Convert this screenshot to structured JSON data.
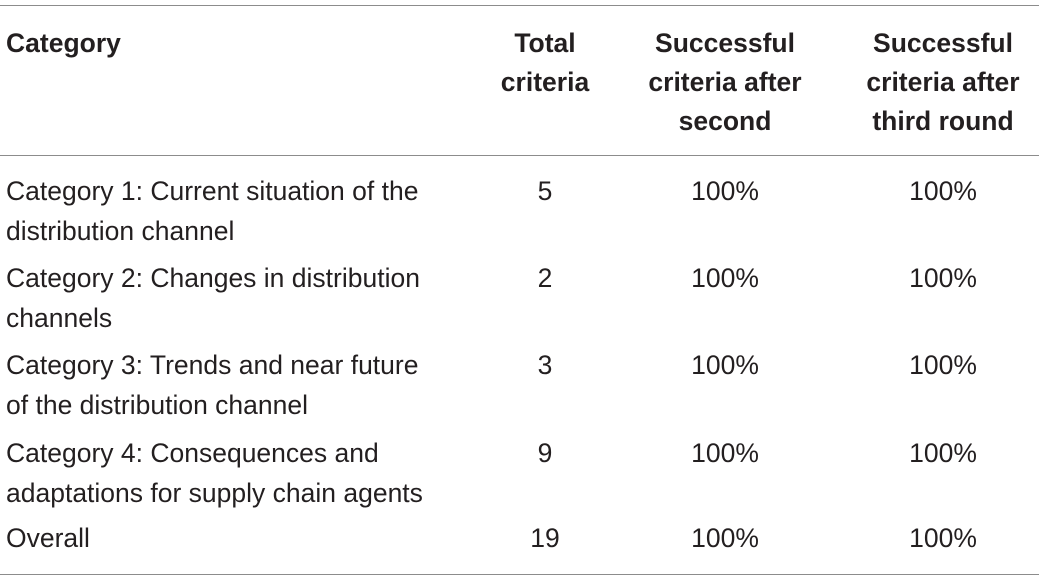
{
  "table": {
    "headers": {
      "category": "Category",
      "total": "Total\ncriteria",
      "second": "Successful\ncriteria after\nsecond",
      "third": "Successful\ncriteria after\nthird round"
    },
    "rows": [
      {
        "category": "Category 1: Current situation of the\ndistribution channel",
        "total": "5",
        "second": "100%",
        "third": "100%"
      },
      {
        "category": "Category 2: Changes in distribution\nchannels",
        "total": "2",
        "second": "100%",
        "third": "100%"
      },
      {
        "category": "Category 3: Trends and near future\nof the distribution channel",
        "total": "3",
        "second": "100%",
        "third": "100%"
      },
      {
        "category": "Category 4: Consequences and\nadaptations for supply chain agents",
        "total": "9",
        "second": "100%",
        "third": "100%"
      },
      {
        "category": "Overall",
        "total": "19",
        "second": "100%",
        "third": "100%"
      }
    ]
  }
}
